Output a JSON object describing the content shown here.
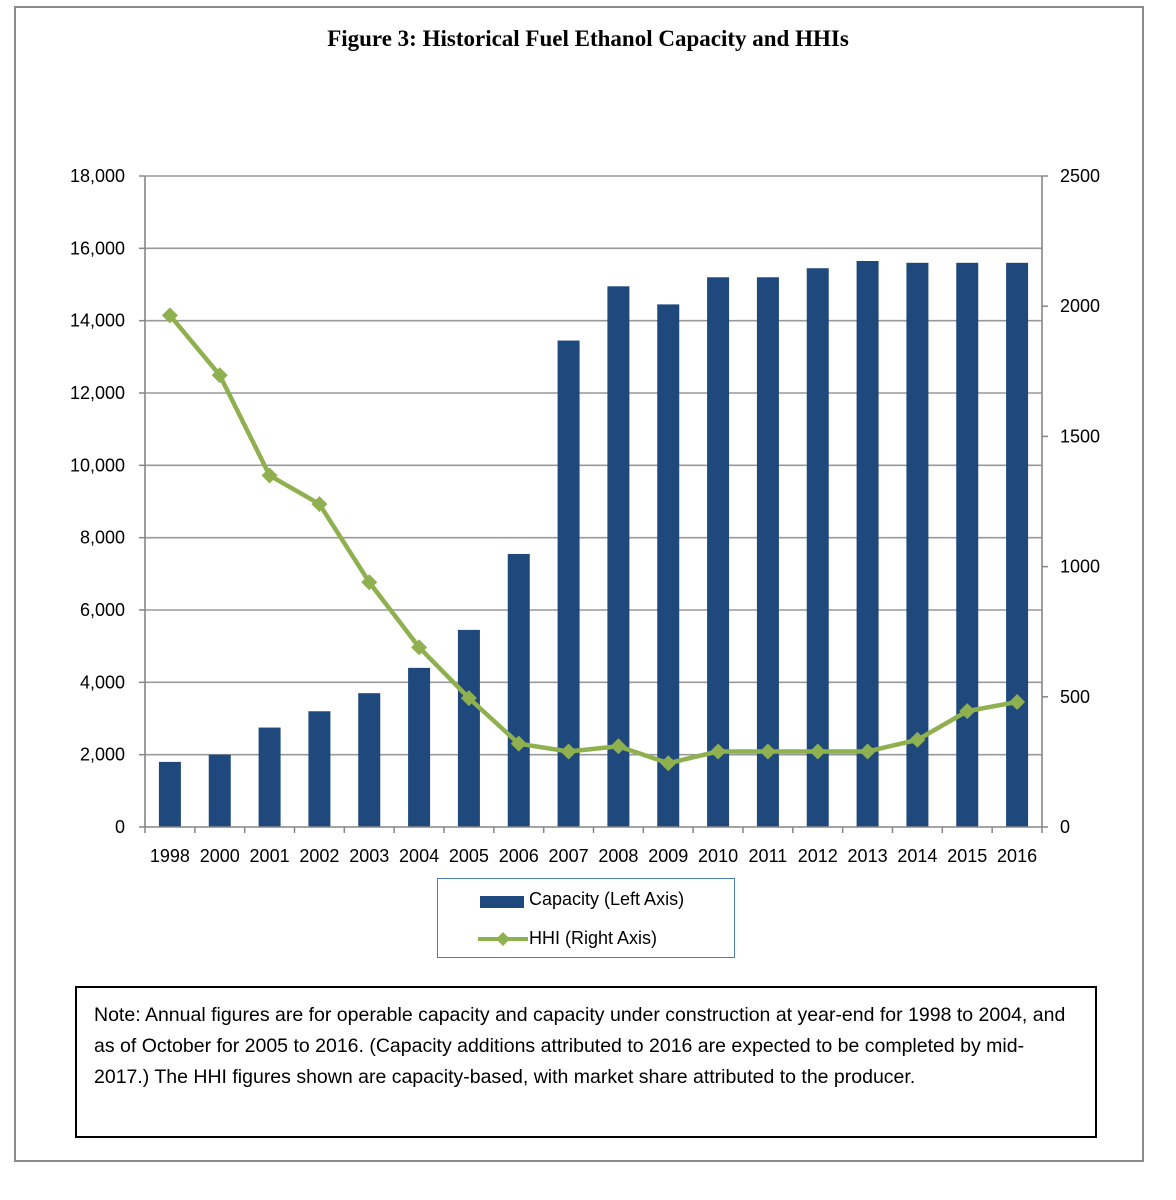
{
  "chart_data": {
    "type": "bar",
    "title": "Figure 3: Historical Fuel Ethanol Capacity and HHIs",
    "categories": [
      "1998",
      "2000",
      "2001",
      "2002",
      "2003",
      "2004",
      "2005",
      "2006",
      "2007",
      "2008",
      "2009",
      "2010",
      "2011",
      "2012",
      "2013",
      "2014",
      "2015",
      "2016"
    ],
    "series": [
      {
        "name": "Capacity (Left Axis)",
        "type": "bar",
        "axis": "left",
        "color": "#1f497d",
        "values": [
          1800,
          2000,
          2750,
          3200,
          3700,
          4400,
          5450,
          7550,
          13450,
          14950,
          14450,
          15200,
          15200,
          15450,
          15650,
          15600,
          15600,
          15600
        ]
      },
      {
        "name": "HHI (Right Axis)",
        "type": "line",
        "axis": "right",
        "color": "#8fb04e",
        "marker": "diamond",
        "values": [
          1965,
          1735,
          1350,
          1240,
          940,
          690,
          495,
          320,
          290,
          310,
          245,
          290,
          290,
          290,
          290,
          335,
          445,
          480
        ]
      }
    ],
    "y_left": {
      "min": 0,
      "max": 18000,
      "ticks": [
        "0",
        "2,000",
        "4,000",
        "6,000",
        "8,000",
        "10,000",
        "12,000",
        "14,000",
        "16,000",
        "18,000"
      ]
    },
    "y_right": {
      "min": 0,
      "max": 2500,
      "ticks": [
        "0",
        "500",
        "1000",
        "1500",
        "2000",
        "2500"
      ]
    },
    "grid": true,
    "legend_position": "bottom-center"
  },
  "note": "Note:  Annual figures are for operable capacity and capacity under construction at year-end for 1998 to 2004, and as of October for 2005 to 2016.  (Capacity additions attributed to 2016 are expected to be completed by mid-2017.)  The HHI figures shown are capacity-based, with market share attributed to the producer.",
  "colors": {
    "capacity": "#1f497d",
    "hhi": "#8fb04e",
    "grid": "#999999",
    "legend_border": "#4a7ebb"
  }
}
